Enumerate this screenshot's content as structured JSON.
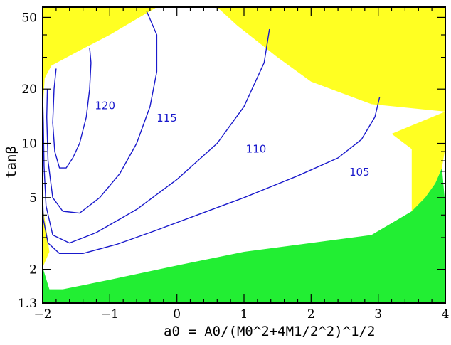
{
  "chart_data": {
    "type": "contour",
    "xlabel": "a0 = A0/(M0^2+4M1/2^2)^1/2",
    "ylabel": "tanβ",
    "xlim": [
      -2,
      4
    ],
    "ylim": [
      1.3,
      57
    ],
    "yscale": "log",
    "xticks": [
      "−2",
      "−1",
      "0",
      "1",
      "2",
      "3",
      "4"
    ],
    "yticks": [
      "1.3",
      "2",
      "5",
      "10",
      "20",
      "50"
    ],
    "grid": false,
    "colors": {
      "excluded_top": "#ffff22",
      "excluded_bottom": "#22ee33",
      "contour": "#1a1acc",
      "frame": "#000000"
    },
    "regions": [
      {
        "fill": "excluded_top",
        "points": [
          [
            -2,
            57
          ],
          [
            4,
            57
          ],
          [
            4,
            15
          ],
          [
            2.9,
            16.5
          ],
          [
            2.0,
            22
          ],
          [
            1.5,
            30
          ],
          [
            0.9,
            45
          ],
          [
            0.6,
            57
          ],
          [
            -0.3,
            57
          ],
          [
            -1.0,
            40
          ],
          [
            -1.5,
            32
          ],
          [
            -1.87,
            27
          ],
          [
            -1.97,
            23
          ],
          [
            -2,
            15
          ]
        ]
      },
      {
        "fill": "excluded_top",
        "points": [
          [
            -2,
            4.5
          ],
          [
            -2,
            2.05
          ],
          [
            -1.9,
            2.5
          ],
          [
            -1.94,
            3.2
          ]
        ]
      },
      {
        "fill": "excluded_top",
        "points": [
          [
            3.2,
            11.3
          ],
          [
            3.5,
            9.3
          ],
          [
            3.5,
            4.2
          ],
          [
            3.7,
            5.0
          ],
          [
            3.85,
            6.0
          ],
          [
            3.95,
            7.3
          ],
          [
            4,
            9.5
          ],
          [
            4,
            15
          ]
        ]
      },
      {
        "fill": "excluded_bottom",
        "points": [
          [
            -2,
            1.3
          ],
          [
            4,
            1.3
          ],
          [
            4,
            4.5
          ],
          [
            3.95,
            7.3
          ],
          [
            3.85,
            6.0
          ],
          [
            3.7,
            5.0
          ],
          [
            3.5,
            4.2
          ],
          [
            2.9,
            3.1
          ],
          [
            1.0,
            2.5
          ],
          [
            0,
            2.1
          ],
          [
            -1.0,
            1.75
          ],
          [
            -1.7,
            1.55
          ],
          [
            -1.9,
            1.55
          ],
          [
            -2,
            2.05
          ]
        ]
      }
    ],
    "series": [
      {
        "label": "120",
        "label_at": [
          -1.07,
          15.5
        ],
        "points": [
          [
            -1.3,
            34
          ],
          [
            -1.28,
            28
          ],
          [
            -1.3,
            20
          ],
          [
            -1.35,
            14
          ],
          [
            -1.45,
            10
          ],
          [
            -1.55,
            8.3
          ],
          [
            -1.65,
            7.3
          ],
          [
            -1.75,
            7.3
          ],
          [
            -1.82,
            9
          ],
          [
            -1.85,
            13
          ],
          [
            -1.83,
            20
          ],
          [
            -1.8,
            26
          ]
        ]
      },
      {
        "label": "115",
        "label_at": [
          -0.15,
          13.2
        ],
        "points": [
          [
            -0.45,
            54
          ],
          [
            -0.3,
            40
          ],
          [
            -0.3,
            25
          ],
          [
            -0.4,
            16
          ],
          [
            -0.6,
            10
          ],
          [
            -0.85,
            6.8
          ],
          [
            -1.15,
            5.0
          ],
          [
            -1.45,
            4.1
          ],
          [
            -1.7,
            4.2
          ],
          [
            -1.85,
            5
          ],
          [
            -1.92,
            8
          ],
          [
            -1.94,
            14
          ],
          [
            -1.93,
            20
          ]
        ]
      },
      {
        "label": "110",
        "label_at": [
          1.18,
          8.9
        ],
        "points": [
          [
            1.38,
            43
          ],
          [
            1.3,
            28
          ],
          [
            1.0,
            16
          ],
          [
            0.6,
            10
          ],
          [
            0.0,
            6.3
          ],
          [
            -0.6,
            4.3
          ],
          [
            -1.2,
            3.2
          ],
          [
            -1.6,
            2.8
          ],
          [
            -1.85,
            3.1
          ],
          [
            -1.95,
            4.5
          ],
          [
            -1.98,
            7.5
          ],
          [
            -1.99,
            13
          ],
          [
            -2,
            18
          ]
        ]
      },
      {
        "label": "105",
        "label_at": [
          2.72,
          6.6
        ],
        "points": [
          [
            3.02,
            18
          ],
          [
            2.95,
            14
          ],
          [
            2.75,
            10.5
          ],
          [
            2.4,
            8.3
          ],
          [
            1.8,
            6.6
          ],
          [
            1.0,
            5.0
          ],
          [
            0.3,
            4.0
          ],
          [
            -0.3,
            3.3
          ],
          [
            -0.9,
            2.75
          ],
          [
            -1.4,
            2.45
          ],
          [
            -1.75,
            2.45
          ],
          [
            -1.92,
            2.8
          ],
          [
            -1.99,
            3.8
          ],
          [
            -2,
            5
          ]
        ]
      }
    ]
  }
}
